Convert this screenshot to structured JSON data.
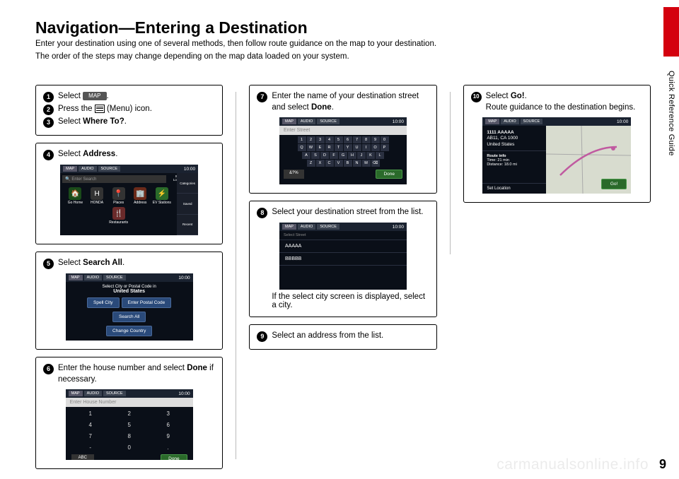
{
  "page": {
    "title": "Navigation—Entering a Destination",
    "intro1": "Enter your destination using one of several methods, then follow route guidance on the map to your destination.",
    "intro2": "The order of the steps may change depending on the map data loaded on your system.",
    "side_label": "Quick Reference Guide",
    "page_number": "9",
    "watermark": "carmanualsonline.info"
  },
  "steps": {
    "s1": {
      "num": "1",
      "pre": "Select ",
      "chip": "MAP",
      "post": "."
    },
    "s2": {
      "num": "2",
      "pre": "Press the ",
      "post": " (Menu) icon."
    },
    "s3": {
      "num": "3",
      "pre": "Select ",
      "bold": "Where To?",
      "post": "."
    },
    "s4": {
      "num": "4",
      "pre": "Select ",
      "bold": "Address",
      "post": "."
    },
    "s5": {
      "num": "5",
      "pre": "Select ",
      "bold": "Search All",
      "post": "."
    },
    "s6": {
      "num": "6",
      "pre": "Enter the house number and select ",
      "bold": "Done",
      "post": " if necessary."
    },
    "s7": {
      "num": "7",
      "pre": "Enter the name of your destination street and select ",
      "bold": "Done",
      "post": "."
    },
    "s8": {
      "num": "8",
      "text": "Select your destination street from the list.",
      "footer": "If the select city screen is displayed, select a city."
    },
    "s9": {
      "num": "9",
      "text": "Select an address from the list."
    },
    "s10": {
      "num": "10",
      "pre": "Select ",
      "bold": "Go!",
      "post": ".",
      "sub": "Route guidance to the destination begins."
    }
  },
  "screens": {
    "common": {
      "clock": "10:00",
      "tabs": [
        "MAP",
        "AUDIO",
        "SOURCE"
      ]
    },
    "s4": {
      "search_placeholder": "Enter Search",
      "status": "Searching near\nLos Angeles, CA",
      "icons": [
        "Go Home",
        "HONDA",
        "Places",
        "Address",
        "EV Stations",
        "Restaurants"
      ],
      "side": [
        "Categories",
        "Saved",
        "Recent"
      ]
    },
    "s5": {
      "header": "Select City or Postal Code in",
      "country": "United States",
      "btn1": "Spell City",
      "btn2": "Enter Postal Code",
      "btn3": "Search All",
      "btn4": "Change Country"
    },
    "s6": {
      "placeholder": "Enter House Number",
      "keys": [
        "1",
        "2",
        "3",
        "4",
        "5",
        "6",
        "7",
        "8",
        "9",
        "-",
        "0",
        "."
      ],
      "abc": "ABC",
      "done": "Done"
    },
    "s7": {
      "placeholder": "Enter Street",
      "row1": [
        "1",
        "2",
        "3",
        "4",
        "5",
        "6",
        "7",
        "8",
        "9",
        "0"
      ],
      "row2": [
        "Q",
        "W",
        "E",
        "R",
        "T",
        "Y",
        "U",
        "I",
        "O",
        "P"
      ],
      "row3": [
        "A",
        "S",
        "D",
        "F",
        "G",
        "H",
        "J",
        "K",
        "L"
      ],
      "row4": [
        "Z",
        "X",
        "C",
        "V",
        "B",
        "N",
        "M",
        "⌫"
      ],
      "alt": "&?%",
      "done": "Done"
    },
    "s8": {
      "header": "Select Street",
      "items": [
        "AAAAA",
        "BBBBB"
      ]
    },
    "s10": {
      "addr1": "1111 AAAAA",
      "addr2": "AB11, CA 1000",
      "addr3": "United States",
      "route_label": "Route info",
      "route_time": "Time: 21 min",
      "route_dist": "Distance: 18.0 mi",
      "setloc": "Set Location",
      "go": "Go!"
    }
  }
}
